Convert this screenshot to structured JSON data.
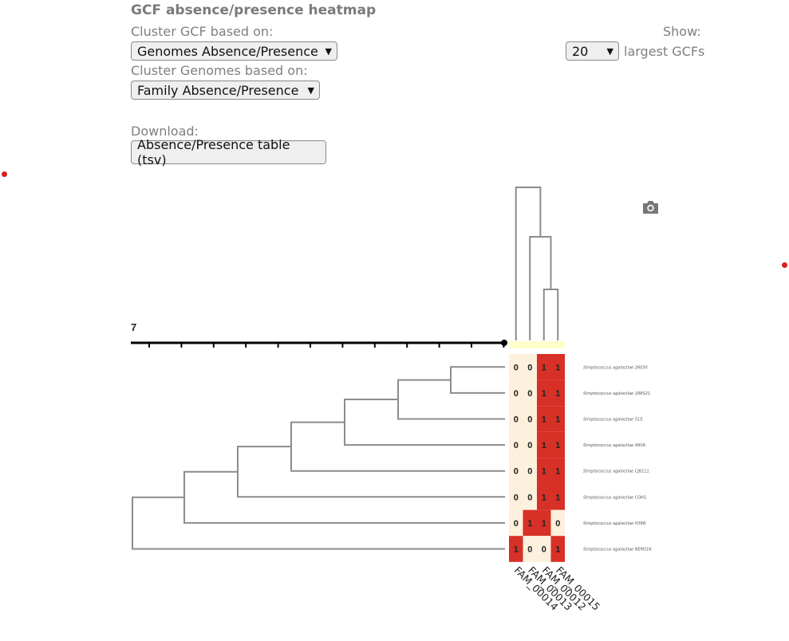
{
  "header": {
    "title": "GCF absence/presence heatmap"
  },
  "controls": {
    "cluster_gcf_label": "Cluster GCF based on:",
    "cluster_gcf_value": "Genomes Absence/Presence",
    "cluster_genomes_label": "Cluster Genomes based on:",
    "cluster_genomes_value": "Family Absence/Presence",
    "download_label": "Download:",
    "download_button": "Absence/Presence table (tsv)",
    "show_label": "Show:",
    "show_value": "20",
    "show_suffix": "largest GCFs"
  },
  "toolbar": {
    "icon": "camera-icon"
  },
  "colors": {
    "present": "#d73027",
    "absent": "#fdf0dc",
    "highlight": "#ffffcc",
    "tree": "#8c8c8c",
    "scale": "#000000"
  },
  "chart_data": {
    "type": "heatmap",
    "title": "",
    "scale_label": "7",
    "columns": [
      "FAM_00014",
      "FAM_00013",
      "FAM_00012",
      "FAM_00015"
    ],
    "rows": [
      "Streptococcus agalactiae 2603V.",
      "Streptococcus agalactiae 18RS21.",
      "Streptococcus agalactiae 515.",
      "Streptococcus agalactiae A909.",
      "Streptococcus agalactiae CJB111.",
      "Streptococcus agalactiae COH1.",
      "Streptococcus agalactiae H36B.",
      "Streptococcus agalactiae NEM316."
    ],
    "values": [
      [
        0,
        0,
        1,
        1
      ],
      [
        0,
        0,
        1,
        1
      ],
      [
        0,
        0,
        1,
        1
      ],
      [
        0,
        0,
        1,
        1
      ],
      [
        0,
        0,
        1,
        1
      ],
      [
        0,
        0,
        1,
        1
      ],
      [
        0,
        1,
        1,
        0
      ],
      [
        1,
        0,
        0,
        1
      ]
    ]
  }
}
